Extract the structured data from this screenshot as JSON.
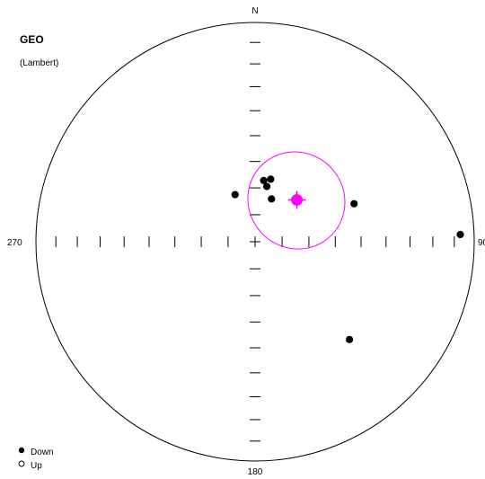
{
  "plot": {
    "title": "GEO",
    "subtitle": "(Lambert)",
    "labels": {
      "north": "N",
      "east": "90",
      "south": "180",
      "west": "270"
    }
  },
  "legend": {
    "down_label": "Down",
    "up_label": "Up"
  },
  "chart_data": {
    "type": "scatter",
    "projection": "Lambert",
    "points": [
      {
        "dec": 337,
        "inc": 71,
        "hemisphere": "down"
      },
      {
        "dec": 12,
        "inc": 69,
        "hemisphere": "down"
      },
      {
        "dec": 8,
        "inc": 67,
        "hemisphere": "down"
      },
      {
        "dec": 14,
        "inc": 66,
        "hemisphere": "down"
      },
      {
        "dec": 21,
        "inc": 73,
        "hemisphere": "down"
      },
      {
        "dec": 69,
        "inc": 50,
        "hemisphere": "down"
      },
      {
        "dec": 88,
        "inc": 7,
        "hemisphere": "down"
      },
      {
        "dec": 136,
        "inc": 38,
        "hemisphere": "down"
      }
    ],
    "mean": {
      "dec": 45,
      "inc": 68,
      "a95": 18,
      "color": "#ff00ff"
    },
    "colors": {
      "points": "#000000",
      "mean": "#ff00ff",
      "circle": "#000000"
    }
  }
}
